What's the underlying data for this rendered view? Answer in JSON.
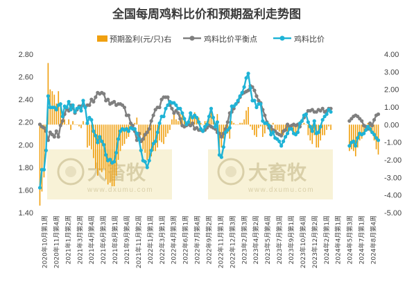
{
  "chart_data": {
    "type": "line",
    "title": "全国每周鸡料比价和预期盈利走势图",
    "legend": [
      {
        "name": "预期盈利(元/只)右",
        "color": "#f0a010",
        "kind": "bar"
      },
      {
        "name": "鸡料比价平衡点",
        "color": "#7f7f7f",
        "kind": "line"
      },
      {
        "name": "鸡料比价",
        "color": "#1fb3d6",
        "kind": "line"
      }
    ],
    "left_axis": {
      "ticks": [
        "2.80",
        "2.60",
        "2.40",
        "2.20",
        "2.00",
        "1.80",
        "1.60",
        "1.40"
      ],
      "ylim": [
        1.4,
        2.8
      ]
    },
    "right_axis": {
      "ticks": [
        "4.00",
        "3.00",
        "2.00",
        "1.00",
        "0.00",
        "-1.00",
        "-2.00",
        "-3.00",
        "-4.00",
        "-5.00"
      ],
      "ylim": [
        -5,
        4
      ]
    },
    "x_labels": [
      "2020年10月第1周",
      "2020年11月第4周",
      "2021年1月第2周",
      "2021年3月第2周",
      "2021年4月第4周",
      "2021年6月第3周",
      "2021年8月第1周",
      "2021年9月第4周",
      "2021年11月第2周",
      "2022年1月第1周",
      "2022年3月第1周",
      "2022年4月第3周",
      "2022年6月第1周",
      "2022年7月第4周",
      "2022年9月第2周",
      "2022年11月第1周",
      "2022年12月第3周",
      "2023年2月第3周",
      "2023年4月第2周",
      "2023年5月第4周",
      "2023年7月第3周",
      "2023年9月第1周",
      "2023年10月第4周",
      "2023年12月第2周",
      "2024年2月第1周",
      "2024年4月第1周",
      "2024年5月第3周",
      "2024年7月第1周",
      "2024年8月第4周"
    ],
    "watermark": {
      "text": "大畜牧",
      "sub": "www.dxumu.com"
    },
    "series": [
      {
        "name": "鸡料比价",
        "axis": "left",
        "values": [
          1.62,
          1.78,
          1.78,
          1.95,
          2.43,
          2.33,
          2.33,
          2.33,
          2.31,
          2.35,
          2.36,
          2.25,
          2.34,
          2.33,
          2.38,
          2.31,
          2.35,
          2.29,
          2.32,
          2.33,
          2.3,
          2.39,
          2.33,
          2.19,
          2.24,
          2.22,
          2.12,
          2.08,
          2.02,
          2.07,
          2.03,
          2.0,
          1.91,
          1.86,
          1.87,
          1.84,
          1.85,
          1.93,
          2.05,
          2.12,
          2.14,
          2.13,
          2.14,
          2.12,
          2.15,
          2.14,
          2.14,
          2.1,
          2.05,
          1.95,
          1.86,
          1.85,
          1.8,
          1.86,
          1.95,
          2.01,
          2.03,
          2.11,
          2.19,
          2.25,
          2.25,
          2.32,
          2.35,
          2.38,
          2.37,
          2.37,
          2.35,
          2.32,
          2.32,
          2.28,
          2.23,
          2.18,
          2.2,
          2.28,
          2.24,
          2.26,
          2.24,
          2.2,
          2.14,
          2.12,
          2.16,
          2.18,
          2.25,
          2.32,
          2.24,
          2.16,
          2.2,
          1.91,
          1.89,
          1.98,
          2.11,
          2.13,
          2.15,
          2.34,
          2.34,
          2.36,
          2.39,
          2.43,
          2.46,
          2.51,
          2.59,
          2.63,
          2.5,
          2.39,
          2.39,
          2.33,
          2.36,
          2.36,
          2.21,
          2.19,
          2.19,
          2.17,
          2.09,
          2.11,
          2.06,
          2.05,
          2.03,
          1.99,
          2.03,
          2.07,
          2.1,
          2.14,
          2.14,
          2.1,
          2.09,
          2.11,
          2.19,
          2.21,
          2.26,
          2.27,
          2.2,
          2.16,
          2.12,
          2.21,
          2.1,
          2.11,
          2.16,
          2.22,
          2.25,
          2.27,
          2.31,
          2.29,
          null,
          null,
          null,
          null,
          null,
          null,
          null,
          null,
          1.99,
          2.02,
          2.03,
          1.99,
          2.06,
          2.1,
          2.09,
          2.1,
          2.13,
          2.16,
          2.14,
          2.11,
          2.09,
          2.06,
          2.04
        ]
      },
      {
        "name": "鸡料比价平衡点",
        "axis": "left",
        "values": [
          2.18,
          2.16,
          2.15,
          2.12,
          2.04,
          2.11,
          2.09,
          2.07,
          2.12,
          2.07,
          2.17,
          2.21,
          2.27,
          2.32,
          2.3,
          2.35,
          2.33,
          2.28,
          2.31,
          2.34,
          2.34,
          2.35,
          2.33,
          2.35,
          2.35,
          2.4,
          2.38,
          2.42,
          2.46,
          2.45,
          2.46,
          2.45,
          2.39,
          2.4,
          2.36,
          2.37,
          2.38,
          2.35,
          2.36,
          2.36,
          2.35,
          2.33,
          2.26,
          2.26,
          2.19,
          2.17,
          2.12,
          2.04,
          2.1,
          2.03,
          2.05,
          2.09,
          2.11,
          2.14,
          2.21,
          2.26,
          2.31,
          2.33,
          2.33,
          2.4,
          2.42,
          2.42,
          2.42,
          2.35,
          2.32,
          2.28,
          2.3,
          2.28,
          2.23,
          2.17,
          2.16,
          2.17,
          2.18,
          2.17,
          2.19,
          2.14,
          2.15,
          2.13,
          2.13,
          2.12,
          2.13,
          2.15,
          2.17,
          2.16,
          2.15,
          2.14,
          2.11,
          2.1,
          2.07,
          2.1,
          2.14,
          2.2,
          2.28,
          2.29,
          2.32,
          2.36,
          2.38,
          2.42,
          2.45,
          2.46,
          2.47,
          2.48,
          2.52,
          2.51,
          2.48,
          2.43,
          2.39,
          2.37,
          2.31,
          2.26,
          2.2,
          2.15,
          2.16,
          2.13,
          2.12,
          2.1,
          2.09,
          2.08,
          2.12,
          2.13,
          2.18,
          2.16,
          2.17,
          2.18,
          2.17,
          2.18,
          2.16,
          2.21,
          2.24,
          2.27,
          2.3,
          2.3,
          2.31,
          2.29,
          2.29,
          2.31,
          2.3,
          2.32,
          2.29,
          2.3,
          2.32,
          2.32,
          null,
          null,
          null,
          null,
          null,
          null,
          null,
          null,
          2.21,
          2.23,
          2.25,
          2.26,
          2.25,
          2.23,
          2.21,
          2.17,
          2.16,
          2.14,
          2.19,
          2.17,
          2.22,
          2.26,
          2.27
        ]
      },
      {
        "name": "预期盈利(元/只)右",
        "axis": "right",
        "type": "bar",
        "values": [
          -4.6,
          -3.8,
          -3.0,
          -1.4,
          3.5,
          2.0,
          1.9,
          1.7,
          1.2,
          1.9,
          1.1,
          0.2,
          0.3,
          0.0,
          0.3,
          -0.3,
          0.2,
          0.0,
          0.0,
          -0.1,
          -0.2,
          0.2,
          0.0,
          -1.3,
          -1.2,
          -1.4,
          -1.9,
          -2.5,
          -2.9,
          -2.6,
          -2.7,
          -2.5,
          -3.1,
          -3.4,
          -3.3,
          -3.5,
          -3.5,
          -2.9,
          -2.0,
          -1.5,
          -1.2,
          -1.1,
          -0.8,
          -0.7,
          -0.2,
          -0.2,
          0.1,
          0.4,
          -0.4,
          -0.6,
          -1.4,
          -1.6,
          -2.0,
          -1.9,
          -1.8,
          -1.5,
          -1.5,
          -1.3,
          -0.9,
          -1.0,
          -1.1,
          -0.7,
          -0.5,
          -0.3,
          0.3,
          0.6,
          0.3,
          0.2,
          0.6,
          0.7,
          0.4,
          0.0,
          0.1,
          0.7,
          0.3,
          0.7,
          0.5,
          0.4,
          0.1,
          0.0,
          0.2,
          0.2,
          0.5,
          1.0,
          0.5,
          0.1,
          0.6,
          -1.3,
          -1.3,
          -0.8,
          -0.2,
          -0.5,
          -0.8,
          0.2,
          0.1,
          0.0,
          0.0,
          0.1,
          0.1,
          0.3,
          0.8,
          1.0,
          -0.1,
          -0.3,
          -0.6,
          -0.7,
          -0.2,
          -0.1,
          -0.7,
          -0.5,
          -0.1,
          0.1,
          -0.5,
          0.1,
          -0.4,
          -0.3,
          -0.4,
          -0.6,
          -0.6,
          -0.4,
          -0.5,
          -0.1,
          -0.2,
          -0.6,
          -0.6,
          -0.5,
          0.2,
          0.0,
          0.1,
          0.0,
          -0.6,
          -0.9,
          -1.1,
          -0.6,
          -1.3,
          -1.3,
          -0.9,
          -0.6,
          -0.6,
          -0.3,
          -0.1,
          -0.3,
          null,
          null,
          null,
          null,
          null,
          null,
          null,
          null,
          -1.5,
          -1.4,
          -1.5,
          -1.8,
          -1.3,
          -0.9,
          -0.8,
          -0.5,
          -0.2,
          0.1,
          -0.4,
          -0.4,
          -0.9,
          -1.4,
          -1.7
        ]
      }
    ]
  }
}
